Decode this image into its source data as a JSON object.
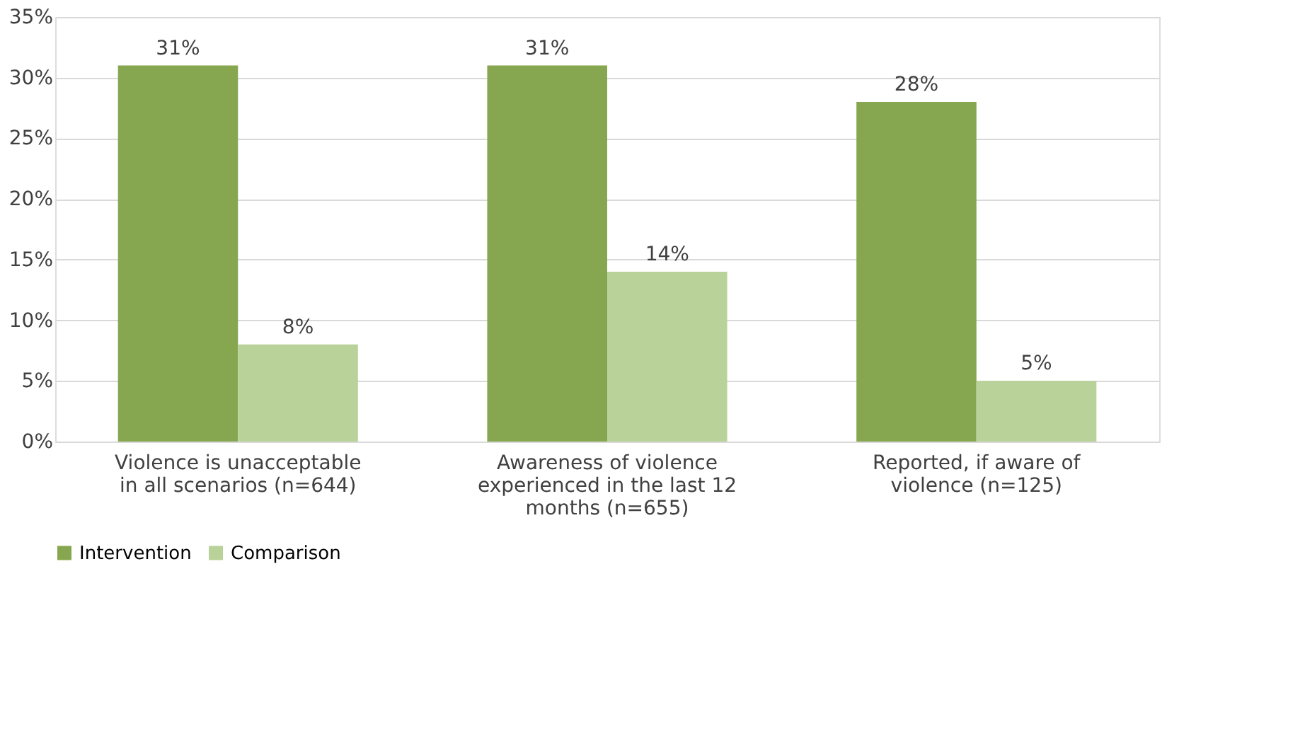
{
  "chart_data": {
    "type": "bar",
    "categories": [
      "Violence is unacceptable in all scenarios (n=644)",
      "Awareness of violence experienced in the last 12 months (n=655)",
      "Reported, if aware of violence (n=125)"
    ],
    "series": [
      {
        "name": "Intervention",
        "color": "#86a74f",
        "values": [
          31,
          31,
          28
        ],
        "value_labels": [
          "31%",
          "31%",
          "28%"
        ]
      },
      {
        "name": "Comparison",
        "color": "#b9d29a",
        "values": [
          8,
          14,
          5
        ],
        "value_labels": [
          "8%",
          "14%",
          "5%"
        ]
      }
    ],
    "ylim": [
      0,
      35
    ],
    "yticks": [
      {
        "value": 0,
        "label": "0%"
      },
      {
        "value": 5,
        "label": "5%"
      },
      {
        "value": 10,
        "label": "10%"
      },
      {
        "value": 15,
        "label": "15%"
      },
      {
        "value": 20,
        "label": "20%"
      },
      {
        "value": 25,
        "label": "25%"
      },
      {
        "value": 30,
        "label": "30%"
      },
      {
        "value": 35,
        "label": "35%"
      }
    ],
    "grid": "y",
    "legend": "bottom"
  }
}
